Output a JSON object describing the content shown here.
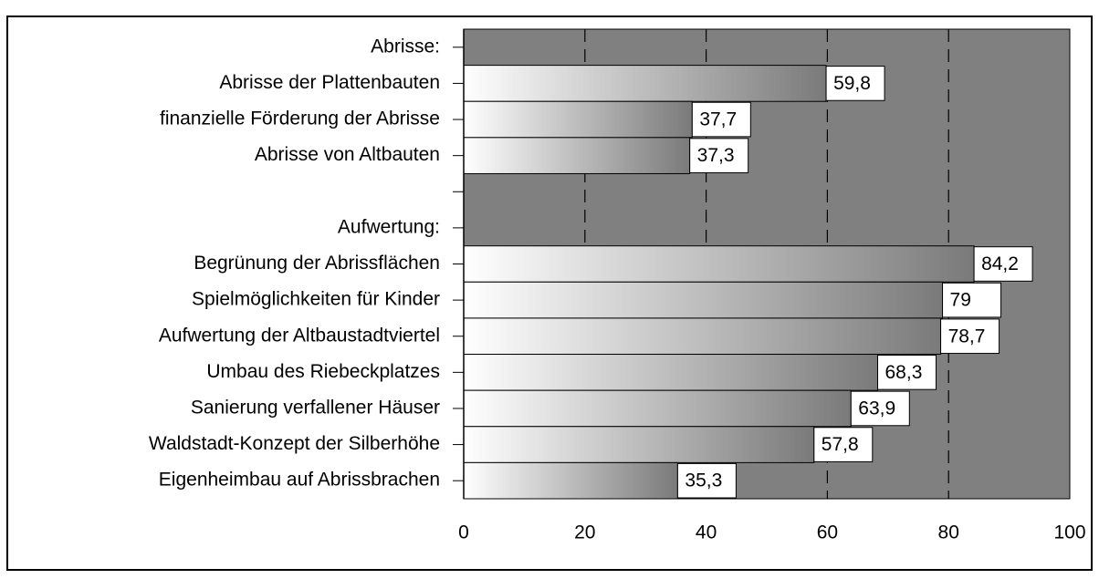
{
  "chart_data": {
    "type": "hbar",
    "categories": [
      "Abrisse:",
      "Abrisse der Plattenbauten",
      "finanzielle Förderung der Abrisse",
      "Abrisse von Altbauten",
      null,
      "Aufwertung:",
      "Begrünung der Abrissflächen",
      "Spielmöglichkeiten für Kinder",
      "Aufwertung der Altbaustadtviertel",
      "Umbau des Riebeckplatzes",
      "Sanierung verfallener Häuser",
      "Waldstadt-Konzept der Silberhöhe",
      "Eigenheimbau auf Abrissbrachen"
    ],
    "values": [
      null,
      59.8,
      37.7,
      37.3,
      null,
      null,
      84.2,
      79,
      78.7,
      68.3,
      63.9,
      57.8,
      35.3
    ],
    "value_labels": [
      null,
      "59,8",
      "37,7",
      "37,3",
      null,
      null,
      "84,2",
      "79",
      "78,7",
      "68,3",
      "63,9",
      "57,8",
      "35,3"
    ],
    "xlim": [
      0,
      100
    ],
    "xticks": [
      0,
      20,
      40,
      60,
      80,
      100
    ],
    "grid": true,
    "background": "#808080"
  }
}
